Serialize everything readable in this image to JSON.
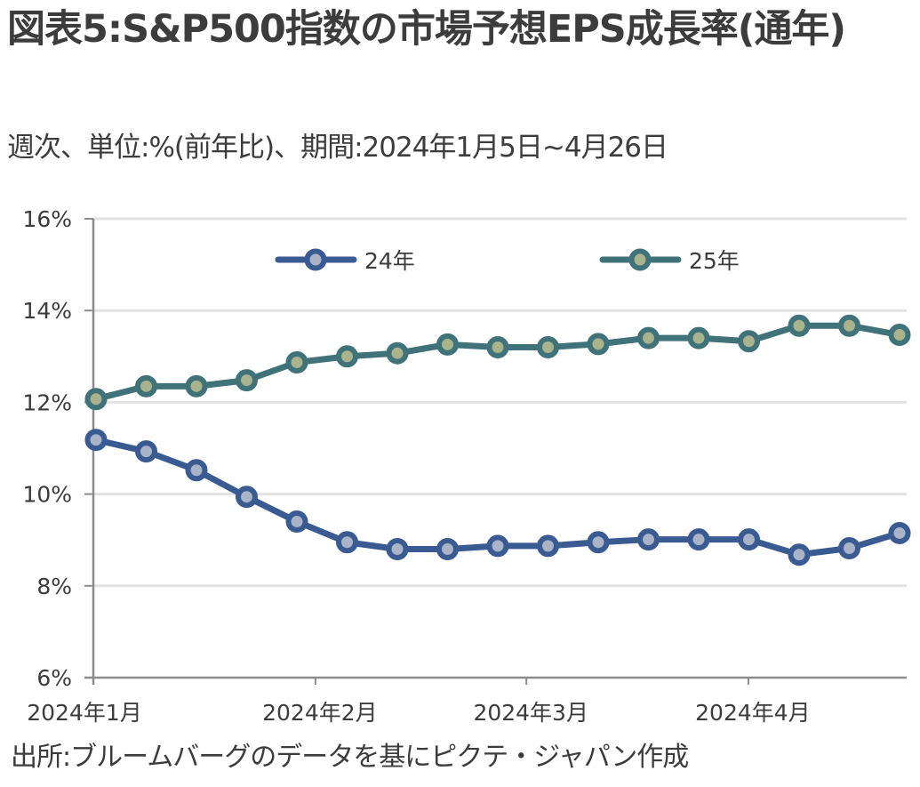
{
  "title": "図表5:S&P500指数の市場予想EPS成長率(通年)",
  "subtitle": "週次、単位:%(前年比)、期間:2024年1月5日~4月26日",
  "source": "出所:ブルームバーグのデータを基にピクテ・ジャパン作成",
  "chart_data": {
    "type": "line",
    "title": "図表5:S&P500指数の市場予想EPS成長率(通年)",
    "xlabel": "",
    "ylabel": "%(前年比)",
    "ylim": [
      6,
      16
    ],
    "yticks": [
      6,
      8,
      10,
      12,
      14,
      16
    ],
    "ytick_labels": [
      "6%",
      "8%",
      "10%",
      "12%",
      "14%",
      "16%"
    ],
    "grid": true,
    "legend_position": "top-center",
    "x": [
      "2024-01-05",
      "2024-01-12",
      "2024-01-19",
      "2024-01-26",
      "2024-02-02",
      "2024-02-09",
      "2024-02-16",
      "2024-02-23",
      "2024-03-01",
      "2024-03-08",
      "2024-03-15",
      "2024-03-22",
      "2024-03-29",
      "2024-04-05",
      "2024-04-12",
      "2024-04-19",
      "2024-04-26"
    ],
    "xticks": [
      {
        "label": "2024年1月",
        "at_index": -0.05
      },
      {
        "label": "2024年2月",
        "at_index": 4.37
      },
      {
        "label": "2024年3月",
        "at_index": 8.57
      },
      {
        "label": "2024年4月",
        "at_index": 12.99
      }
    ],
    "series": [
      {
        "name": "24年",
        "color": "#3a5a92",
        "marker_fill": "#a9b4c8",
        "values": [
          11.18,
          10.93,
          10.52,
          9.94,
          9.4,
          8.95,
          8.8,
          8.8,
          8.87,
          8.87,
          8.95,
          9.01,
          9.01,
          9.01,
          8.68,
          8.82,
          9.15
        ]
      },
      {
        "name": "25年",
        "color": "#40727a",
        "marker_fill": "#a9b38c",
        "values": [
          12.07,
          12.35,
          12.35,
          12.48,
          12.87,
          13.0,
          13.07,
          13.26,
          13.2,
          13.2,
          13.27,
          13.4,
          13.4,
          13.33,
          13.67,
          13.67,
          13.47
        ]
      }
    ]
  }
}
